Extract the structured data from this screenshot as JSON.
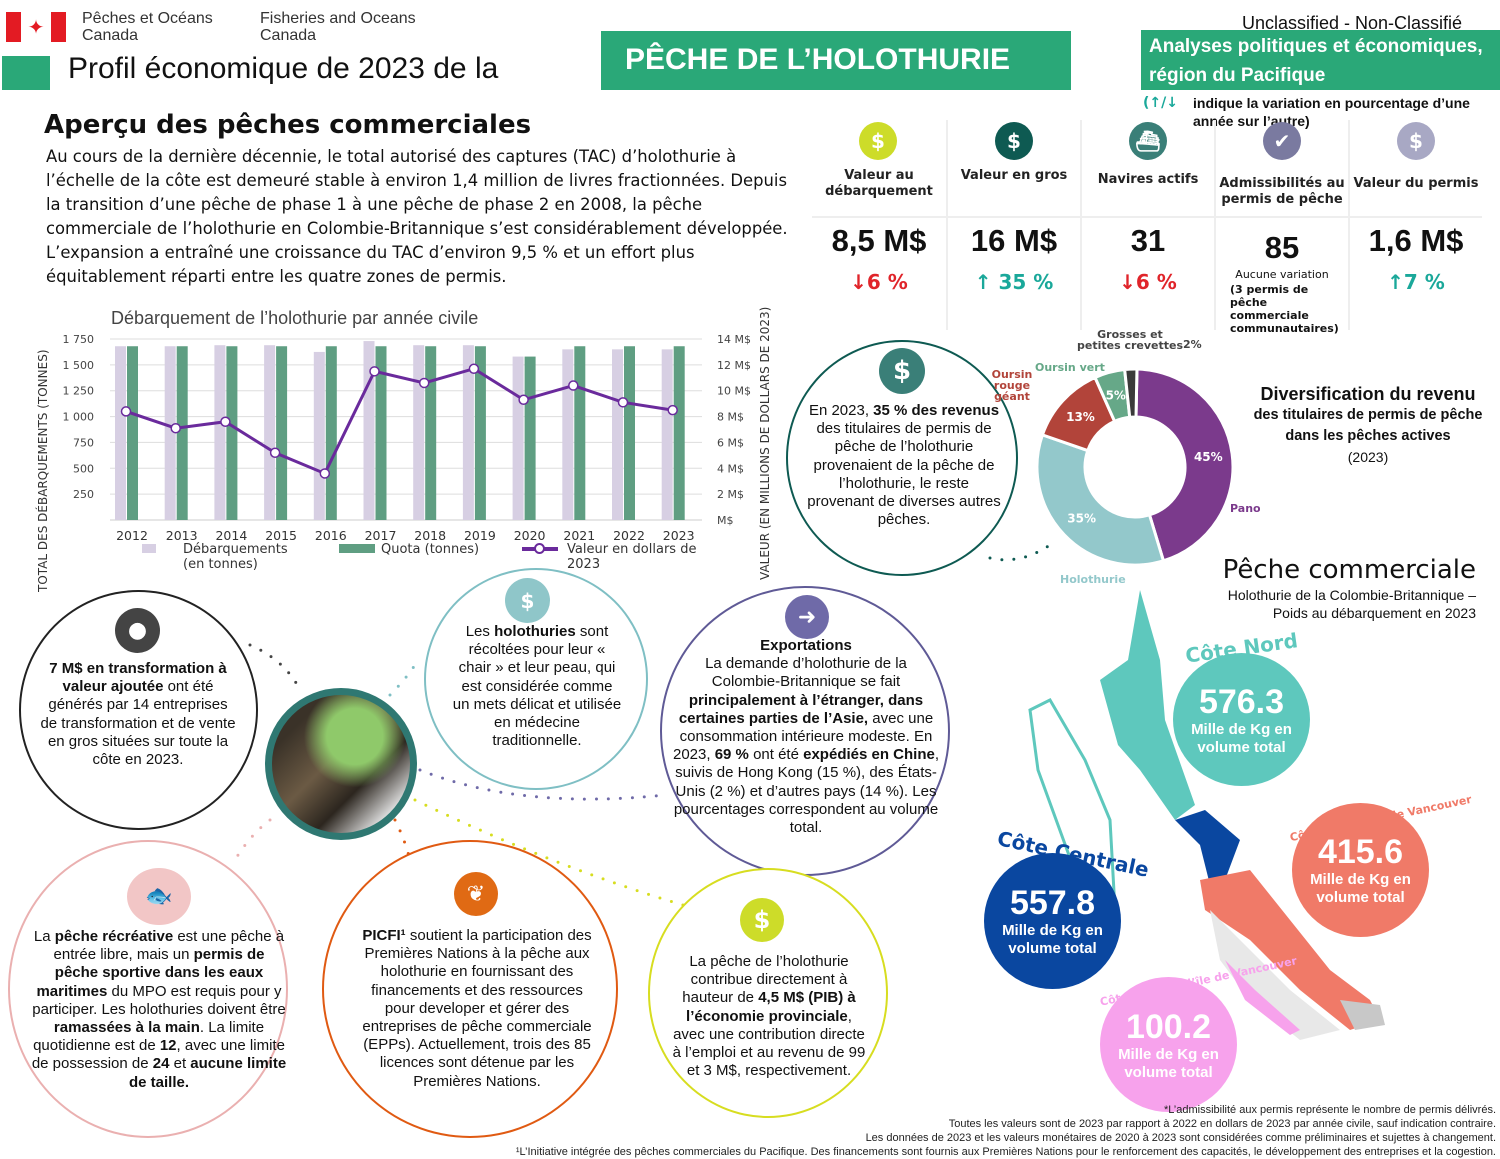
{
  "header": {
    "dept_fr": "Pêches et Océans\nCanada",
    "dept_en": "Fisheries and Oceans\nCanada",
    "title_prefix": "Profil économique de 2023 de la",
    "title_main": "PÊCHE DE L’HOLOTHURIE",
    "classification": "Unclassified - Non-Classifié",
    "unit": "Analyses politiques et économiques, région du Pacifique",
    "legend_arrows": "(↑/↓",
    "legend_text": "indique la variation en pourcentage d’une année sur l’autre)"
  },
  "overview": {
    "title": "Aperçu des pêches commerciales",
    "text": "Au cours de la dernière décennie, le total autorisé des captures (TAC) d’holothurie à l’échelle de la côte est demeuré stable à environ 1,4 million de livres fractionnées. Depuis la transition d’une pêche de phase 1 à une pêche de phase 2 en 2008, la pêche commerciale de l’holothurie en Colombie-Britannique s’est considérablement développée. L’expansion a entraîné une croissance du TAC d’environ 9,5 % et un effort plus équitablement réparti entre les quatre zones de permis."
  },
  "stats": [
    {
      "label": "Valeur au débarquement",
      "value": "8,5 M$",
      "change": "↓6 %",
      "dir": "down",
      "icon": "dollar-icon",
      "color": "#cddc29"
    },
    {
      "label": "Valeur en gros",
      "value": "16 M$",
      "change": "↑ 35 %",
      "dir": "up",
      "icon": "dollar-icon",
      "color": "#0e5a52"
    },
    {
      "label": "Navires actifs",
      "value": "31",
      "change": "↓6 %",
      "dir": "down",
      "icon": "fishing-boat-icon",
      "color": "#3a7f78"
    },
    {
      "label": "Admissibilités au permis de pêche",
      "value": "85",
      "change": "Aucune variation",
      "note": "(3 permis de pêche commerciale communautaires)",
      "dir": "none",
      "icon": "checkmark-icon",
      "color": "#7a7aa0"
    },
    {
      "label": "Valeur du permis",
      "value": "1,6 M$",
      "change": "↑7 %",
      "dir": "up",
      "icon": "dollar-icon",
      "color": "#a8a8c4"
    }
  ],
  "chart_data": [
    {
      "type": "bar",
      "title": "Débarquement de l’holothurie par année civile",
      "ylabel": "TOTAL DES DÉBARQUEMENTS (TONNES)",
      "y2label": "VALEUR (EN MILLIONS DE DOLLARS DE 2023)",
      "categories": [
        "2012",
        "2013",
        "2014",
        "2015",
        "2016",
        "2017",
        "2018",
        "2019",
        "2020",
        "2021",
        "2022",
        "2023"
      ],
      "ylim": [
        0,
        1750
      ],
      "yticks": [
        "250",
        "500",
        "750",
        "1 000",
        "1 250",
        "1 500",
        "1 750"
      ],
      "y2lim": [
        0,
        14
      ],
      "y2ticks": [
        "M$",
        "2 M$",
        "4 M$",
        "6 M$",
        "8 M$",
        "10 M$",
        "12 M$",
        "14 M$"
      ],
      "grid": true,
      "legend_placement": "bottom",
      "series": [
        {
          "name": "Débarquements (en tonnes)",
          "kind": "bar",
          "color": "#d7cfe3",
          "values": [
            1680,
            1680,
            1690,
            1690,
            1625,
            1730,
            1690,
            1690,
            1580,
            1650,
            1650,
            1650
          ]
        },
        {
          "name": "Quota (tonnes)",
          "kind": "bar",
          "color": "#5f9e82",
          "values": [
            1680,
            1680,
            1680,
            1680,
            1680,
            1680,
            1680,
            1680,
            1580,
            1680,
            1680,
            1680
          ]
        },
        {
          "name": "Valeur en dollars de 2023",
          "kind": "line",
          "axis": "right",
          "color": "#6a2a9c",
          "values": [
            8.4,
            7.1,
            7.6,
            5.2,
            3.6,
            11.5,
            10.6,
            11.7,
            9.3,
            10.4,
            9.1,
            8.5
          ]
        }
      ]
    },
    {
      "type": "pie",
      "title": "Diversification du revenu",
      "subtitle": "des titulaires de permis de pêche dans les pêches actives",
      "year": "(2023)",
      "slices": [
        {
          "name": "Panope",
          "value": 45,
          "label": "45%",
          "color": "#7b3a8c"
        },
        {
          "name": "Holothurie",
          "value": 35,
          "label": "35%",
          "color": "#93c8cb"
        },
        {
          "name": "Oursin rouge géant",
          "value": 13,
          "label": "13%",
          "color": "#b2443a"
        },
        {
          "name": "Oursin vert",
          "value": 5,
          "label": "5%",
          "color": "#66a888"
        },
        {
          "name": "Grosses et petites crevettes",
          "value": 2,
          "label": "2%",
          "color": "#3a3a3a"
        }
      ]
    }
  ],
  "revenue_circle": [
    {
      "t": "En 2023, "
    },
    {
      "t": "35 % des revenus",
      "b": 1
    },
    {
      "t": " des titulaires de permis de pêche de l’holothurie provenaient de la pêche de l’holothurie, le reste provenant de diverses autres pêches."
    }
  ],
  "circles": {
    "processing": [
      {
        "t": "7 M$ en transformation à valeur ajoutée",
        "b": 1
      },
      {
        "t": " ont été générés par 14 entreprises de transformation et de vente en gros situées sur toute la côte en 2023."
      }
    ],
    "harvest": [
      {
        "t": "Les "
      },
      {
        "t": "holothuries",
        "b": 1
      },
      {
        "t": " sont récoltées pour leur « chair » et leur peau, qui est considérée comme un mets délicat et utilisée en médecine traditionnelle."
      }
    ],
    "exports": [
      {
        "t": "Exportations",
        "b": 1,
        "br": 1
      },
      {
        "t": "La demande d’holothurie de la Colombie-Britannique se fait "
      },
      {
        "t": "principalement à l’étranger, dans certaines parties de l’Asie,",
        "b": 1
      },
      {
        "t": " avec une consommation intérieure modeste. En 2023, "
      },
      {
        "t": "69 %",
        "b": 1
      },
      {
        "t": " ont été "
      },
      {
        "t": "expédiés en Chine",
        "b": 1
      },
      {
        "t": ", suivis de Hong Kong (15 %), des États-Unis (2 %) et d’autres pays (14 %). Les pourcentages correspondent au volume total."
      }
    ],
    "recreational": [
      {
        "t": "La "
      },
      {
        "t": "pêche récréative",
        "b": 1
      },
      {
        "t": " est une pêche à entrée libre, mais un "
      },
      {
        "t": "permis de pêche sportive dans les eaux maritimes",
        "b": 1
      },
      {
        "t": " du MPO est requis pour y participer. Les holothuries doivent être "
      },
      {
        "t": "ramassées à la main",
        "b": 1
      },
      {
        "t": ". La limite quotidienne est de "
      },
      {
        "t": "12",
        "b": 1
      },
      {
        "t": ", avec une limite de possession de "
      },
      {
        "t": "24",
        "b": 1
      },
      {
        "t": " et "
      },
      {
        "t": "aucune limite de taille.",
        "b": 1
      }
    ],
    "picfi": [
      {
        "t": "PICFI¹",
        "b": 1
      },
      {
        "t": " soutient la participation des Premières Nations à la pêche aux holothurie en fournissant des financements et des ressources pour developer et gérer des entreprises de pêche commerciale (EPPs). Actuellement, trois des 85 licences sont détenue par les Premières Nations."
      }
    ],
    "gdp": [
      {
        "t": "La pêche de l’holothurie contribue directement à hauteur de "
      },
      {
        "t": "4,5 M$ (PIB) à l’économie provinciale",
        "b": 1
      },
      {
        "t": ", avec une contribution directe à l’emploi et au revenu de 99 et 3 M$, respectivement."
      }
    ]
  },
  "map": {
    "title": "Pêche commerciale",
    "subtitle": "Holothurie de la Colombie-Britannique –\nPoids au débarquement en 2023",
    "unit": "Mille de Kg en volume total",
    "regions": [
      {
        "name": "Côte Nord",
        "value": "576.3",
        "color": "#5ec8bd"
      },
      {
        "name": "Côte Centrale",
        "value": "557.8",
        "color": "#0a47a0"
      },
      {
        "name": "Côte est de l’île de Vancouver",
        "value": "415.6",
        "color": "#f07a68"
      },
      {
        "name": "Côte ouest de l’île de Vancouver",
        "value": "100.2",
        "color": "#f7a2ec"
      }
    ]
  },
  "footnotes": [
    "*L’admissibilité aux permis représente le nombre de permis délivrés.",
    "Toutes les valeurs sont de 2023 par rapport à 2022 en dollars de 2023 par année civile, sauf indication contraire.",
    "Les données de 2023 et les valeurs monétaires de 2020 à 2023 sont considérées comme préliminaires et sujettes à changement.",
    "¹L’Initiative intégrée des pêches commerciales du Pacifique. Des financements sont fournis aux Premières Nations pour le renforcement des capacités, le développement des entreprises et la cogestion."
  ]
}
